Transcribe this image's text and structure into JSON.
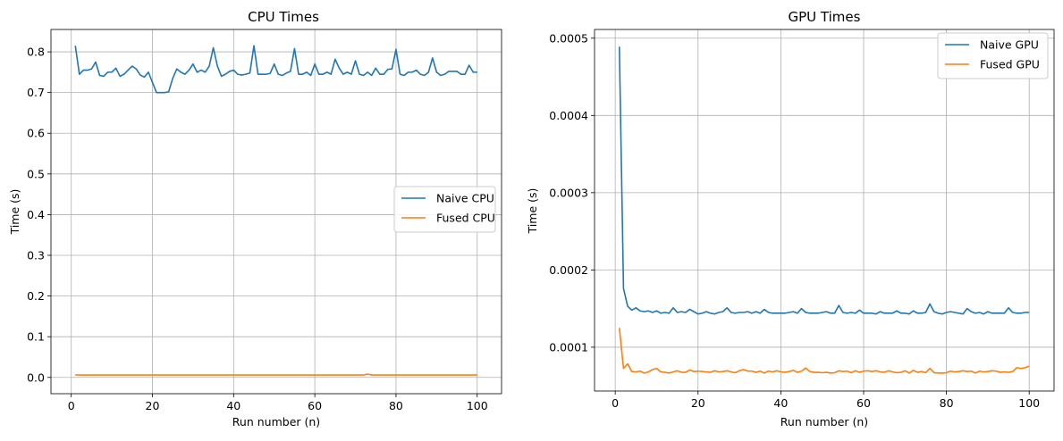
{
  "chart_data": [
    {
      "type": "line",
      "title": "CPU Times",
      "xlabel": "Run number (n)",
      "ylabel": "Time (s)",
      "xlim": [
        -5,
        106
      ],
      "ylim": [
        -0.04,
        0.855
      ],
      "xticks": [
        0,
        20,
        40,
        60,
        80,
        100
      ],
      "xtick_labels": [
        "0",
        "20",
        "40",
        "60",
        "80",
        "100"
      ],
      "yticks": [
        0.0,
        0.1,
        0.2,
        0.3,
        0.4,
        0.5,
        0.6,
        0.7,
        0.8
      ],
      "ytick_labels": [
        "0.0",
        "0.1",
        "0.2",
        "0.3",
        "0.4",
        "0.5",
        "0.6",
        "0.7",
        "0.8"
      ],
      "grid": true,
      "legend_position": "center-right",
      "x": [
        1,
        2,
        3,
        4,
        5,
        6,
        7,
        8,
        9,
        10,
        11,
        12,
        13,
        14,
        15,
        16,
        17,
        18,
        19,
        20,
        21,
        22,
        23,
        24,
        25,
        26,
        27,
        28,
        29,
        30,
        31,
        32,
        33,
        34,
        35,
        36,
        37,
        38,
        39,
        40,
        41,
        42,
        43,
        44,
        45,
        46,
        47,
        48,
        49,
        50,
        51,
        52,
        53,
        54,
        55,
        56,
        57,
        58,
        59,
        60,
        61,
        62,
        63,
        64,
        65,
        66,
        67,
        68,
        69,
        70,
        71,
        72,
        73,
        74,
        75,
        76,
        77,
        78,
        79,
        80,
        81,
        82,
        83,
        84,
        85,
        86,
        87,
        88,
        89,
        90,
        91,
        92,
        93,
        94,
        95,
        96,
        97,
        98,
        99,
        100
      ],
      "series": [
        {
          "name": "Naive CPU",
          "color": "#1f77b4",
          "values": [
            0.815,
            0.745,
            0.755,
            0.755,
            0.758,
            0.775,
            0.742,
            0.74,
            0.75,
            0.75,
            0.76,
            0.74,
            0.745,
            0.755,
            0.765,
            0.758,
            0.743,
            0.738,
            0.75,
            0.725,
            0.7,
            0.7,
            0.7,
            0.702,
            0.735,
            0.758,
            0.75,
            0.745,
            0.755,
            0.77,
            0.75,
            0.755,
            0.75,
            0.765,
            0.81,
            0.765,
            0.74,
            0.745,
            0.752,
            0.755,
            0.745,
            0.743,
            0.745,
            0.748,
            0.815,
            0.745,
            0.745,
            0.745,
            0.747,
            0.77,
            0.745,
            0.742,
            0.748,
            0.752,
            0.808,
            0.745,
            0.745,
            0.75,
            0.742,
            0.77,
            0.745,
            0.745,
            0.75,
            0.745,
            0.782,
            0.76,
            0.745,
            0.75,
            0.745,
            0.778,
            0.745,
            0.742,
            0.75,
            0.742,
            0.76,
            0.745,
            0.745,
            0.757,
            0.758,
            0.806,
            0.745,
            0.742,
            0.75,
            0.75,
            0.755,
            0.745,
            0.742,
            0.75,
            0.785,
            0.75,
            0.742,
            0.745,
            0.752,
            0.752,
            0.752,
            0.745,
            0.745,
            0.767,
            0.75,
            0.75
          ]
        },
        {
          "name": "Fused CPU",
          "color": "#ff7f0e",
          "values": [
            0.006,
            0.006,
            0.006,
            0.006,
            0.006,
            0.006,
            0.006,
            0.006,
            0.006,
            0.006,
            0.006,
            0.006,
            0.006,
            0.006,
            0.006,
            0.006,
            0.006,
            0.006,
            0.006,
            0.006,
            0.006,
            0.006,
            0.006,
            0.006,
            0.006,
            0.006,
            0.006,
            0.006,
            0.006,
            0.006,
            0.006,
            0.006,
            0.006,
            0.006,
            0.006,
            0.006,
            0.006,
            0.006,
            0.006,
            0.006,
            0.006,
            0.006,
            0.006,
            0.006,
            0.006,
            0.006,
            0.006,
            0.006,
            0.006,
            0.006,
            0.006,
            0.006,
            0.006,
            0.006,
            0.006,
            0.006,
            0.006,
            0.006,
            0.006,
            0.006,
            0.006,
            0.006,
            0.006,
            0.006,
            0.006,
            0.006,
            0.006,
            0.006,
            0.006,
            0.006,
            0.006,
            0.006,
            0.008,
            0.006,
            0.006,
            0.006,
            0.006,
            0.006,
            0.006,
            0.006,
            0.006,
            0.006,
            0.006,
            0.006,
            0.006,
            0.006,
            0.006,
            0.006,
            0.006,
            0.006,
            0.006,
            0.006,
            0.006,
            0.006,
            0.006,
            0.006,
            0.006,
            0.006,
            0.006,
            0.006
          ]
        }
      ]
    },
    {
      "type": "line",
      "title": "GPU Times",
      "xlabel": "Run number (n)",
      "ylabel": "Time (s)",
      "xlim": [
        -5,
        106
      ],
      "ylim": [
        4.33e-05,
        0.0005113
      ],
      "xticks": [
        0,
        20,
        40,
        60,
        80,
        100
      ],
      "xtick_labels": [
        "0",
        "20",
        "40",
        "60",
        "80",
        "100"
      ],
      "yticks": [
        0.0001,
        0.0002,
        0.0003,
        0.0004,
        0.0005
      ],
      "ytick_labels": [
        "0.0001",
        "0.0002",
        "0.0003",
        "0.0004",
        "0.0005"
      ],
      "grid": true,
      "legend_position": "upper-right",
      "x": [
        1,
        2,
        3,
        4,
        5,
        6,
        7,
        8,
        9,
        10,
        11,
        12,
        13,
        14,
        15,
        16,
        17,
        18,
        19,
        20,
        21,
        22,
        23,
        24,
        25,
        26,
        27,
        28,
        29,
        30,
        31,
        32,
        33,
        34,
        35,
        36,
        37,
        38,
        39,
        40,
        41,
        42,
        43,
        44,
        45,
        46,
        47,
        48,
        49,
        50,
        51,
        52,
        53,
        54,
        55,
        56,
        57,
        58,
        59,
        60,
        61,
        62,
        63,
        64,
        65,
        66,
        67,
        68,
        69,
        70,
        71,
        72,
        73,
        74,
        75,
        76,
        77,
        78,
        79,
        80,
        81,
        82,
        83,
        84,
        85,
        86,
        87,
        88,
        89,
        90,
        91,
        92,
        93,
        94,
        95,
        96,
        97,
        98,
        99,
        100
      ],
      "series": [
        {
          "name": "Naive GPU",
          "color": "#1f77b4",
          "values": [
            0.000489,
            0.000176,
            0.000153,
            0.000148,
            0.000151,
            0.000147,
            0.000146,
            0.000147,
            0.000145,
            0.000147,
            0.000144,
            0.000145,
            0.000144,
            0.000151,
            0.000145,
            0.000146,
            0.000145,
            0.000149,
            0.000146,
            0.000143,
            0.000144,
            0.000146,
            0.000144,
            0.000143,
            0.000145,
            0.000146,
            0.000151,
            0.000145,
            0.000144,
            0.000145,
            0.000145,
            0.000146,
            0.000144,
            0.000146,
            0.000144,
            0.000149,
            0.000145,
            0.000144,
            0.000144,
            0.000144,
            0.000144,
            0.000145,
            0.000146,
            0.000144,
            0.00015,
            0.000145,
            0.000144,
            0.000144,
            0.000144,
            0.000145,
            0.000146,
            0.000144,
            0.000144,
            0.000154,
            0.000145,
            0.000144,
            0.000145,
            0.000144,
            0.000148,
            0.000144,
            0.000144,
            0.000144,
            0.000143,
            0.000146,
            0.000144,
            0.000144,
            0.000144,
            0.000147,
            0.000144,
            0.000144,
            0.000143,
            0.000147,
            0.000144,
            0.000144,
            0.000145,
            0.000156,
            0.000146,
            0.000144,
            0.000143,
            0.000145,
            0.000146,
            0.000145,
            0.000144,
            0.000143,
            0.00015,
            0.000146,
            0.000144,
            0.000145,
            0.000143,
            0.000146,
            0.000144,
            0.000144,
            0.000144,
            0.000144,
            0.000151,
            0.000145,
            0.000144,
            0.000144,
            0.000145,
            0.000145
          ]
        },
        {
          "name": "Fused GPU",
          "color": "#ff7f0e",
          "values": [
            0.000125,
            7.25e-05,
            7.85e-05,
            6.85e-05,
            6.8e-05,
            6.9e-05,
            6.65e-05,
            6.8e-05,
            7.1e-05,
            7.25e-05,
            6.8e-05,
            6.75e-05,
            6.65e-05,
            6.8e-05,
            6.95e-05,
            6.75e-05,
            6.75e-05,
            7.05e-05,
            6.85e-05,
            6.9e-05,
            6.85e-05,
            6.8e-05,
            6.75e-05,
            6.95e-05,
            6.8e-05,
            6.85e-05,
            6.95e-05,
            6.8e-05,
            6.7e-05,
            6.95e-05,
            7.1e-05,
            6.9e-05,
            6.9e-05,
            6.75e-05,
            6.9e-05,
            6.65e-05,
            6.9e-05,
            6.8e-05,
            6.95e-05,
            6.8e-05,
            6.75e-05,
            6.85e-05,
            7e-05,
            6.75e-05,
            6.9e-05,
            7.3e-05,
            6.85e-05,
            6.75e-05,
            6.75e-05,
            6.7e-05,
            6.75e-05,
            6.65e-05,
            6.7e-05,
            6.95e-05,
            6.85e-05,
            6.9e-05,
            6.7e-05,
            6.95e-05,
            6.75e-05,
            6.9e-05,
            6.95e-05,
            6.85e-05,
            6.95e-05,
            6.8e-05,
            6.75e-05,
            6.95e-05,
            6.8e-05,
            6.7e-05,
            6.75e-05,
            6.95e-05,
            6.65e-05,
            7e-05,
            6.75e-05,
            6.85e-05,
            6.7e-05,
            7.25e-05,
            6.7e-05,
            6.65e-05,
            6.65e-05,
            6.7e-05,
            6.9e-05,
            6.8e-05,
            6.85e-05,
            6.95e-05,
            6.85e-05,
            6.9e-05,
            6.65e-05,
            6.9e-05,
            6.8e-05,
            6.85e-05,
            6.95e-05,
            6.9e-05,
            6.75e-05,
            6.8e-05,
            6.75e-05,
            6.85e-05,
            7.35e-05,
            7.25e-05,
            7.35e-05,
            7.55e-05
          ]
        }
      ]
    }
  ]
}
